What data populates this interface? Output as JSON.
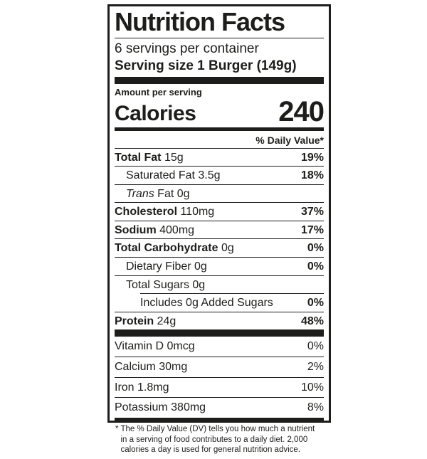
{
  "title": "Nutrition Facts",
  "servings_per_container": "6 servings per container",
  "serving_size": {
    "label": "Serving size",
    "value": "1 Burger (149g)"
  },
  "amount_per_serving": "Amount per serving",
  "calories": {
    "label": "Calories",
    "value": "240"
  },
  "daily_value_header": "% Daily Value*",
  "nutrients": [
    {
      "name": "Total Fat",
      "amount": "15g",
      "dv": "19%"
    },
    {
      "name": "Saturated Fat",
      "amount": "3.5g",
      "dv": "18%"
    },
    {
      "name": "Trans",
      "amount": "Fat 0g",
      "dv": ""
    },
    {
      "name": "Cholesterol",
      "amount": "110mg",
      "dv": "37%"
    },
    {
      "name": "Sodium",
      "amount": "400mg",
      "dv": "17%"
    },
    {
      "name": "Total Carbohydrate",
      "amount": "0g",
      "dv": "0%"
    },
    {
      "name": "Dietary Fiber",
      "amount": "0g",
      "dv": "0%"
    },
    {
      "name": "Total Sugars",
      "amount": "0g",
      "dv": ""
    },
    {
      "name": "Includes 0g Added Sugars",
      "amount": "",
      "dv": "0%"
    },
    {
      "name": "Protein",
      "amount": "24g",
      "dv": "48%"
    }
  ],
  "vitamins": [
    {
      "name": "Vitamin D",
      "amount": "0mcg",
      "dv": "0%"
    },
    {
      "name": "Calcium",
      "amount": "30mg",
      "dv": "2%"
    },
    {
      "name": "Iron",
      "amount": "1.8mg",
      "dv": "10%"
    },
    {
      "name": "Potassium",
      "amount": "380mg",
      "dv": "8%"
    }
  ],
  "footnote": {
    "marker": "*",
    "text": "The % Daily Value (DV) tells you how much a nutrient in a serving of food contributes to a daily diet. 2,000 calories a day is used for general nutrition advice."
  },
  "colors": {
    "ink": "#1d1d1b",
    "background": "#ffffff"
  }
}
